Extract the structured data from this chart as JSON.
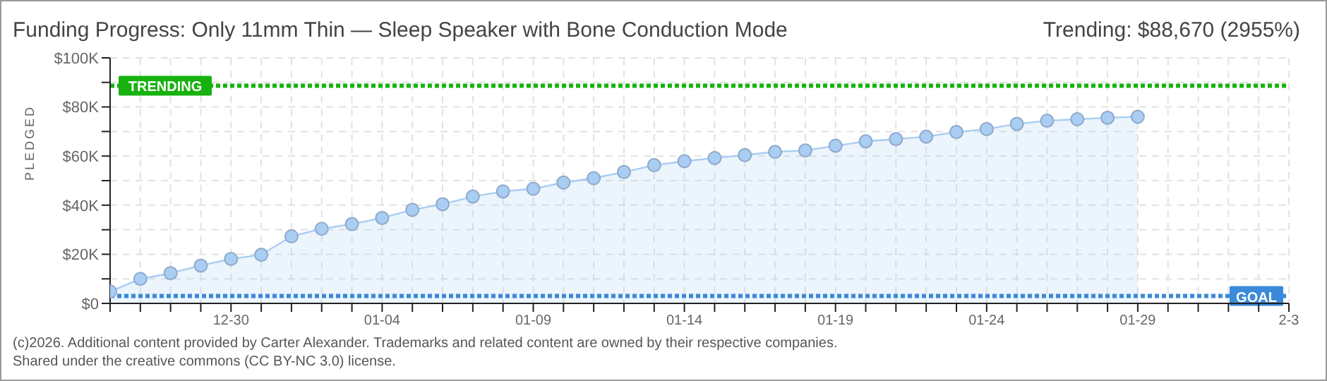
{
  "chart_data": {
    "type": "area",
    "title": "Funding Progress: Only 11mm Thin — Sleep Speaker with Bone Conduction Mode",
    "ylabel": "PLEDGED",
    "annotations": [
      "Trending: $88,670 (2955%)",
      "(c)2026. Additional content provided by Carter Alexander. Trademarks and related content are owned by their respective companies.",
      "Shared under the creative commons (CC BY-NC 3.0) license."
    ],
    "categories": [
      null,
      null,
      null,
      null,
      "12-30",
      null,
      null,
      null,
      null,
      "01-04",
      null,
      null,
      null,
      null,
      "01-09",
      null,
      null,
      null,
      null,
      "01-14",
      null,
      null,
      null,
      null,
      "01-19",
      null,
      null,
      null,
      null,
      "01-24",
      null,
      null,
      null,
      null,
      "01-29",
      null,
      null,
      null,
      null,
      "2-3"
    ],
    "series": [
      {
        "color": "#a9cdf3",
        "values": [
          4800,
          10000,
          12300,
          15400,
          18100,
          19800,
          27300,
          30400,
          32300,
          34800,
          38100,
          40400,
          43500,
          45600,
          46700,
          49200,
          51000,
          53500,
          56300,
          57900,
          59200,
          60400,
          61700,
          62300,
          64200,
          66000,
          66900,
          67900,
          69800,
          71000,
          73100,
          74400,
          75000,
          75600,
          76000,
          null,
          null,
          null,
          null,
          null
        ]
      }
    ],
    "ylim": [
      0,
      100000
    ],
    "yticks": [
      {
        "value": 0,
        "label": "$0"
      },
      {
        "value": 10000,
        "label": null
      },
      {
        "value": 20000,
        "label": "$20K"
      },
      {
        "value": 30000,
        "label": null
      },
      {
        "value": 40000,
        "label": "$40K"
      },
      {
        "value": 50000,
        "label": null
      },
      {
        "value": 60000,
        "label": "$60K"
      },
      {
        "value": 70000,
        "label": null
      },
      {
        "value": 80000,
        "label": "$80K"
      },
      {
        "value": 90000,
        "label": null
      },
      {
        "value": 100000,
        "label": "$100K"
      }
    ],
    "ref_lines": [
      {
        "axis": "y",
        "value": 88670,
        "label": "TRENDING",
        "color": "#17b20f",
        "line_style": "dotted"
      },
      {
        "axis": "y",
        "value": 3000,
        "label": "GOAL",
        "color": "#3b8ad9",
        "line_style": "dotted"
      }
    ],
    "grid": true,
    "marker": "circle"
  }
}
